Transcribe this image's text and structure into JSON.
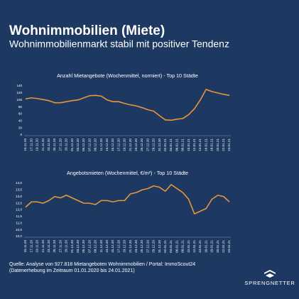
{
  "header": {
    "title": "Wohnimmobilien (Miete)",
    "subtitle": "Wohnimmobilienmarkt stabil mit positiver Tendenz"
  },
  "chart_data": [
    {
      "type": "line",
      "title": "Anzahl Mietangebote (Wochenmittel, normiert) - Top 10 Städte",
      "categories": [
        "15.11.20",
        "17.11.20",
        "19.11.20",
        "21.11.20",
        "23.11.20",
        "25.11.20",
        "27.11.20",
        "29.11.20",
        "01.12.20",
        "03.12.20",
        "05.12.20",
        "07.12.20",
        "09.12.20",
        "11.12.20",
        "13.12.20",
        "15.12.20",
        "17.12.20",
        "19.12.20",
        "21.12.20",
        "23.12.20",
        "25.12.20",
        "27.12.20",
        "29.12.20",
        "31.12.20",
        "02.01.21",
        "04.01.21",
        "06.01.21",
        "08.01.21",
        "10.01.21",
        "12.01.21",
        "14.01.21",
        "16.01.21",
        "18.01.21",
        "20.01.21",
        "22.01.21",
        "24.01.21"
      ],
      "values": [
        103,
        106,
        104,
        101,
        98,
        92,
        92,
        95,
        98,
        100,
        106,
        112,
        113,
        111,
        100,
        95,
        95,
        90,
        86,
        83,
        78,
        72,
        68,
        55,
        43,
        42,
        45,
        47,
        58,
        75,
        100,
        130,
        124,
        120,
        116,
        113
      ],
      "color": "#e9953b",
      "ylim": [
        0,
        140
      ],
      "yticks": [
        0,
        20,
        40,
        60,
        80,
        100,
        120,
        140
      ],
      "grid": false
    },
    {
      "type": "line",
      "title": "Angebotsmieten (Wochenmittel, €/m²) - Top 10 Städte",
      "categories": [
        "15.11.20",
        "17.11.20",
        "19.11.20",
        "21.11.20",
        "23.11.20",
        "25.11.20",
        "27.11.20",
        "29.11.20",
        "01.12.20",
        "03.12.20",
        "05.12.20",
        "07.12.20",
        "09.12.20",
        "11.12.20",
        "13.12.20",
        "15.12.20",
        "17.12.20",
        "19.12.20",
        "21.12.20",
        "23.12.20",
        "25.12.20",
        "27.12.20",
        "29.12.20",
        "31.12.20",
        "02.01.21",
        "04.01.21",
        "06.01.21",
        "08.01.21",
        "10.01.21",
        "12.01.21",
        "14.01.21",
        "16.01.21",
        "18.01.21",
        "20.01.21",
        "22.01.21",
        "24.01.21"
      ],
      "values": [
        12.2,
        12.6,
        12.6,
        12.5,
        12.7,
        13.0,
        12.9,
        13.1,
        12.9,
        12.7,
        12.5,
        12.5,
        12.4,
        12.7,
        12.7,
        12.6,
        12.7,
        12.7,
        13.2,
        13.3,
        13.5,
        13.6,
        13.8,
        13.7,
        13.4,
        13.9,
        13.6,
        13.3,
        12.8,
        11.7,
        11.9,
        12.1,
        12.8,
        13.1,
        13.0,
        12.6
      ],
      "color": "#e9953b",
      "ylim": [
        10,
        14
      ],
      "yticks": [
        {
          "value": 10,
          "label": "10,0"
        },
        {
          "value": 10.5,
          "label": "10,5"
        },
        {
          "value": 11,
          "label": "11,0"
        },
        {
          "value": 11.5,
          "label": "11,5"
        },
        {
          "value": 12,
          "label": "12,0"
        },
        {
          "value": 12.5,
          "label": "12,5"
        },
        {
          "value": 13,
          "label": "13,0"
        },
        {
          "value": 13.5,
          "label": "13,5"
        },
        {
          "value": 14,
          "label": "14,0"
        }
      ],
      "grid": false
    }
  ],
  "footer": {
    "source": "Quelle: Analyse von 927.818 Mietangeboten Wohnimmobilien / Portal: ImmoScout24",
    "note": "(Datenerhebung im Zeitraum 01.01.2020 bis  24.01.2021)"
  },
  "logo": {
    "text": "SPRENGNETTER"
  }
}
